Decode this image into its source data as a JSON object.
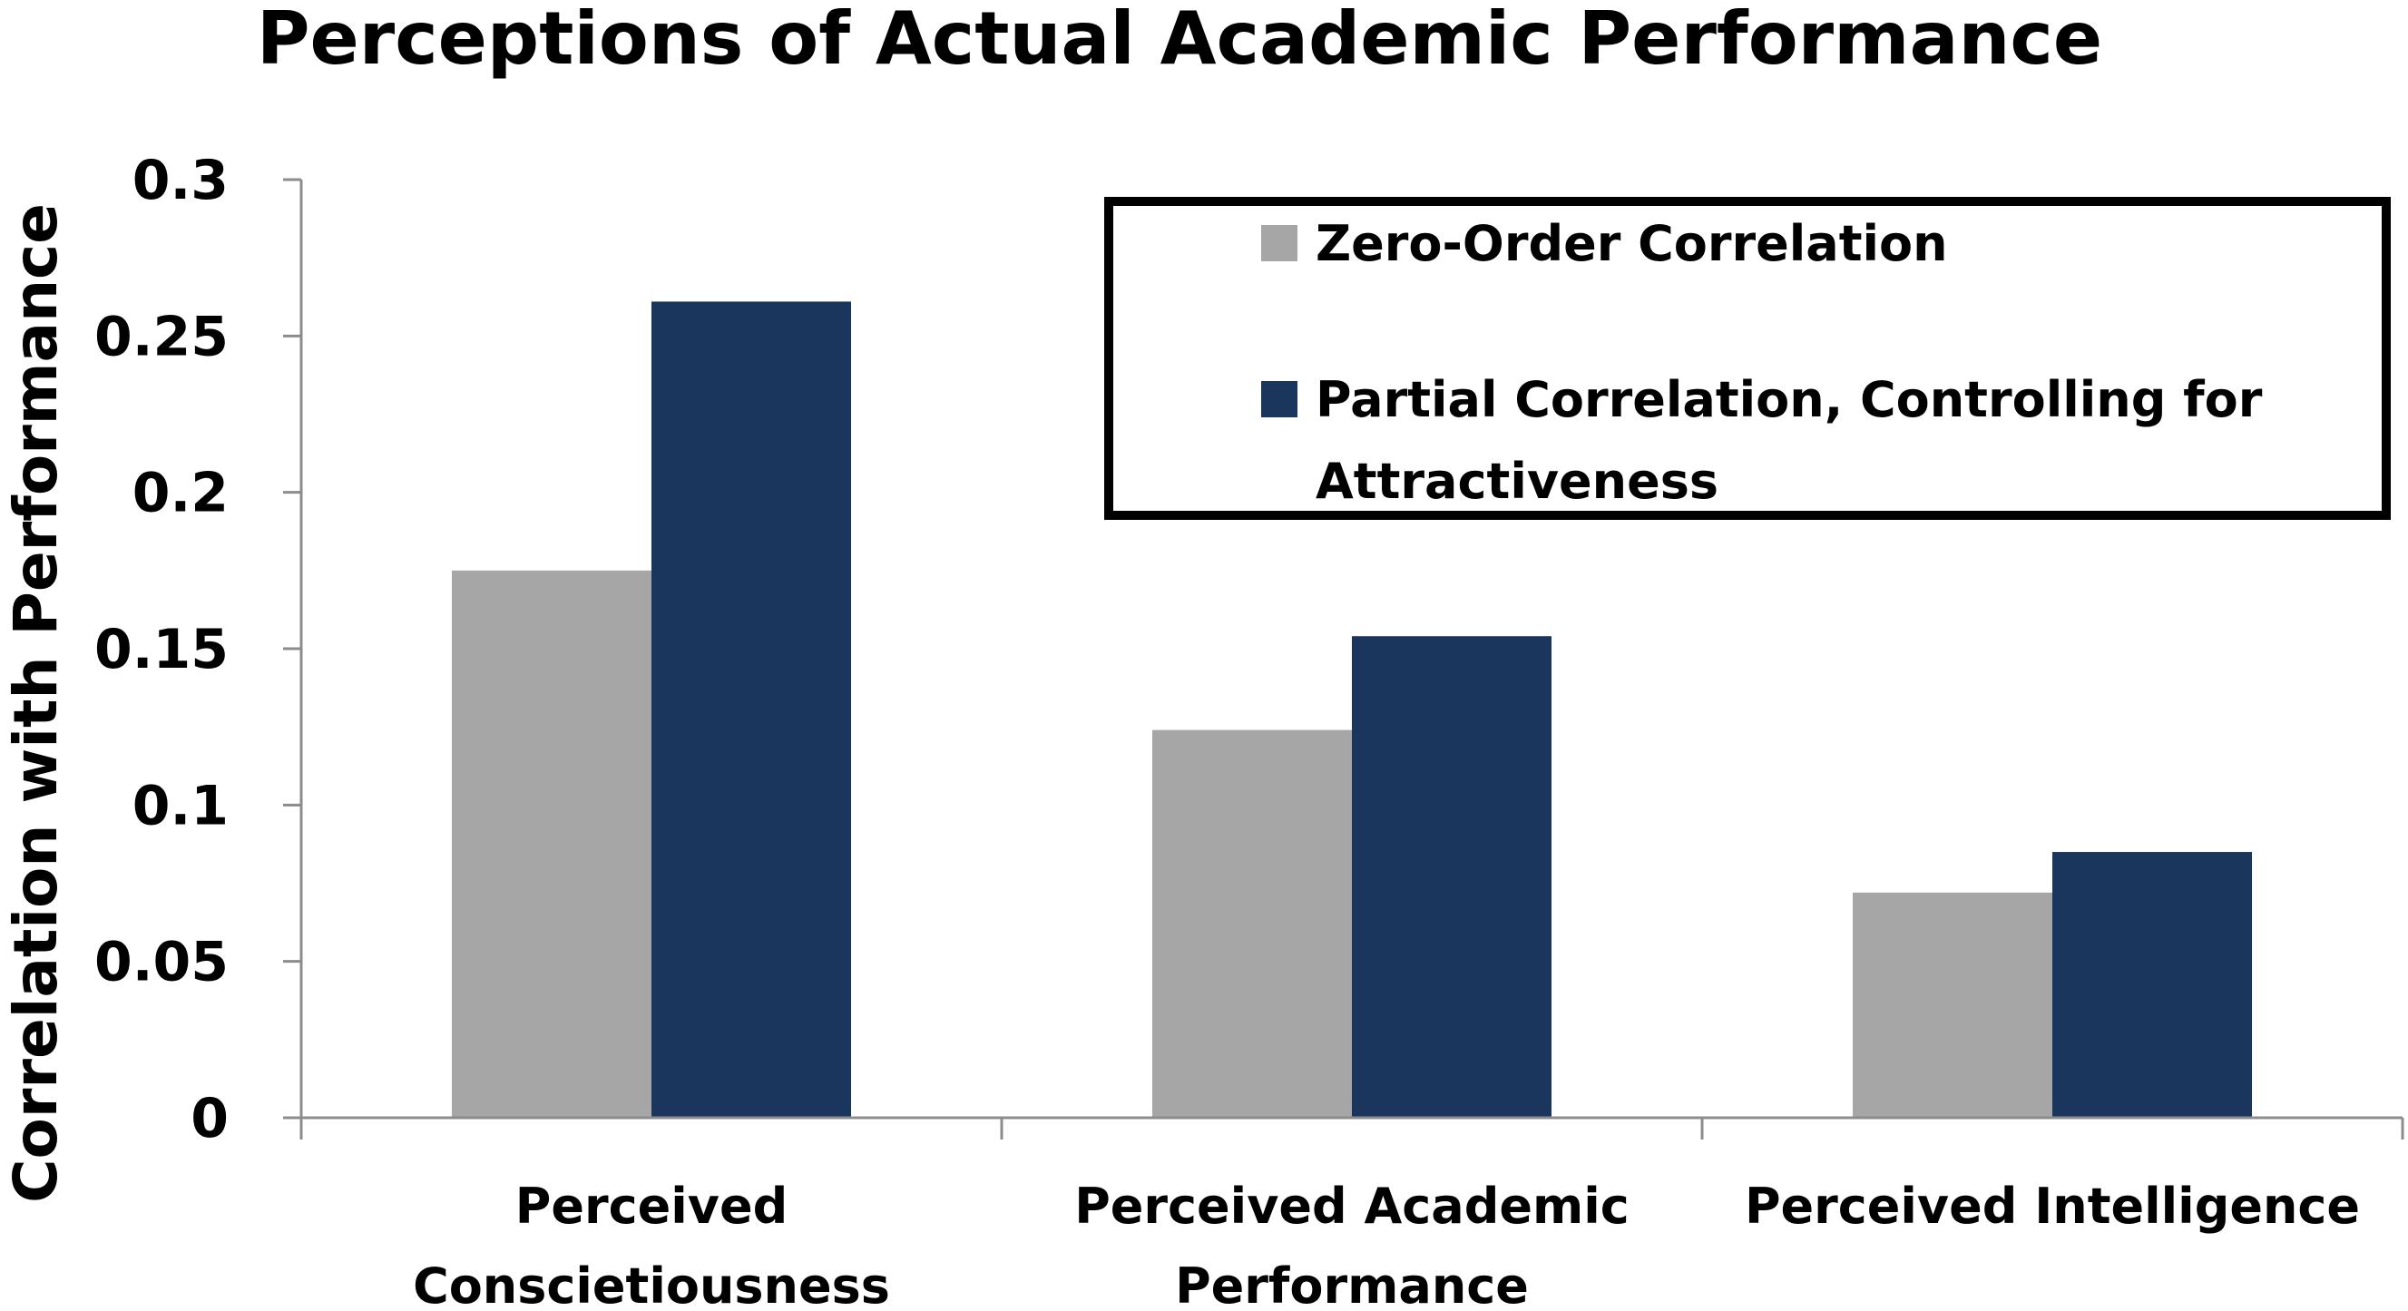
{
  "chart_data": {
    "type": "bar",
    "title": "Perceptions of Actual Academic Performance",
    "xlabel": "",
    "ylabel": "Correlation with Performance",
    "ylim": [
      0,
      0.3
    ],
    "yticks": [
      "0",
      "0.05",
      "0.1",
      "0.15",
      "0.2",
      "0.25",
      "0.3"
    ],
    "grid": false,
    "legend_position": "top-right",
    "categories": [
      [
        "Perceived",
        "Conscietiousness"
      ],
      [
        "Perceived Academic",
        "Performance"
      ],
      [
        "Perceived Intelligence"
      ]
    ],
    "series": [
      {
        "name": "Zero-Order Correlation",
        "legend_lines": [
          "Zero-Order Correlation"
        ],
        "color": "#a6a6a6",
        "values": [
          0.175,
          0.124,
          0.072
        ]
      },
      {
        "name": "Partial Correlation, Controlling for Attractiveness",
        "legend_lines": [
          "Partial Correlation, Controlling for",
          "Attractiveness"
        ],
        "color": "#1b365d",
        "values": [
          0.261,
          0.154,
          0.085
        ]
      }
    ]
  }
}
